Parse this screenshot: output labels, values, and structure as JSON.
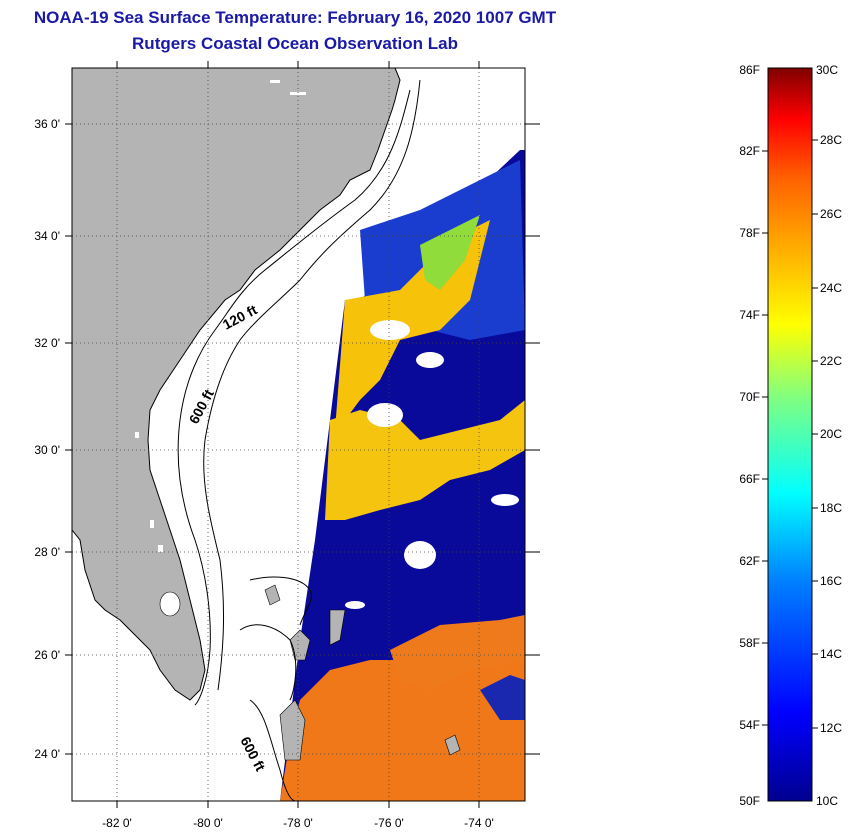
{
  "header": {
    "title": "NOAA-19 Sea Surface Temperature:  February 16, 2020 1007 GMT",
    "subtitle": "Rutgers Coastal Ocean Observation Lab"
  },
  "map": {
    "lon_range": [
      -83,
      -73
    ],
    "lat_range": [
      23,
      37
    ],
    "lon_labels": [
      "-82 0'",
      "-80 0'",
      "-78 0'",
      "-76 0'",
      "-74 0'"
    ],
    "lat_labels": [
      "36 0'",
      "34 0'",
      "32 0'",
      "30 0'",
      "28 0'",
      "26 0'",
      "24 0'"
    ],
    "contour_labels": [
      "120 ft",
      "600 ft",
      "600 ft"
    ],
    "colors": {
      "land": "#b4b4b4",
      "cloud": "#ffffff",
      "cold": "#0a0a8c",
      "warm": "#f07814"
    }
  },
  "colorbar": {
    "f_labels": [
      "86F",
      "82F",
      "78F",
      "74F",
      "70F",
      "66F",
      "62F",
      "58F",
      "54F",
      "50F"
    ],
    "c_labels": [
      "30C",
      "28C",
      "26C",
      "24C",
      "22C",
      "20C",
      "18C",
      "16C",
      "14C",
      "12C",
      "10C"
    ],
    "range_c": [
      10,
      30
    ]
  }
}
